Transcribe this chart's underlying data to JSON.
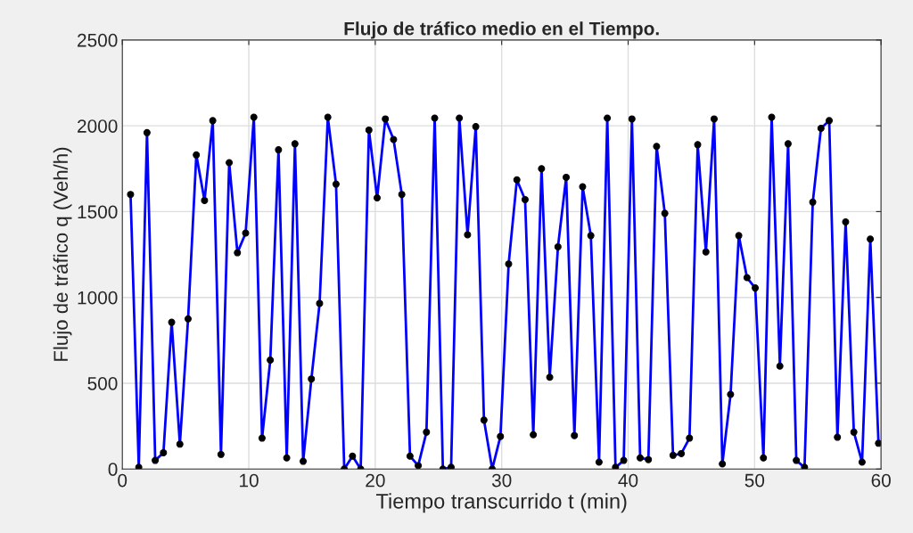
{
  "chart_data": {
    "type": "line",
    "title": "Flujo de tráfico medio en el Tiempo.",
    "xlabel": "Tiempo transcurrido t (min)",
    "ylabel": "Flujo de tráfico q (Veh/h)",
    "x": [
      0.65,
      1.3,
      1.95,
      2.6,
      3.25,
      3.9,
      4.55,
      5.2,
      5.85,
      6.5,
      7.15,
      7.8,
      8.45,
      9.1,
      9.75,
      10.4,
      11.05,
      11.7,
      12.35,
      13,
      13.65,
      14.3,
      14.95,
      15.6,
      16.25,
      16.9,
      17.55,
      18.2,
      18.85,
      19.5,
      20.15,
      20.8,
      21.45,
      22.1,
      22.75,
      23.4,
      24.05,
      24.7,
      25.35,
      26,
      26.65,
      27.3,
      27.95,
      28.6,
      29.25,
      29.9,
      30.55,
      31.2,
      31.85,
      32.5,
      33.15,
      33.8,
      34.45,
      35.1,
      35.75,
      36.4,
      37.05,
      37.7,
      38.35,
      39,
      39.65,
      40.3,
      40.95,
      41.6,
      42.25,
      42.9,
      43.55,
      44.2,
      44.85,
      45.5,
      46.15,
      46.8,
      47.45,
      48.1,
      48.75,
      49.4,
      50.05,
      50.7,
      51.35,
      52,
      52.65,
      53.3,
      53.95,
      54.6,
      55.25,
      55.9,
      56.55,
      57.2,
      57.85,
      58.5,
      59.15,
      59.8
    ],
    "series": [
      {
        "color": "#0000ff",
        "values": [
          1600,
          10,
          1960,
          50,
          95,
          855,
          145,
          875,
          1830,
          1565,
          2030,
          85,
          1785,
          1260,
          1375,
          2050,
          180,
          635,
          1860,
          65,
          1895,
          45,
          525,
          965,
          2050,
          1660,
          0,
          75,
          0,
          1975,
          1580,
          2040,
          1920,
          1600,
          75,
          20,
          215,
          2045,
          0,
          10,
          2045,
          1365,
          1995,
          285,
          0,
          190,
          1195,
          1685,
          1570,
          200,
          1750,
          535,
          1295,
          1700,
          195,
          1645,
          1360,
          40,
          2045,
          10,
          50,
          2040,
          65,
          55,
          1880,
          1490,
          80,
          90,
          180,
          1890,
          1265,
          2040,
          30,
          435,
          1360,
          1115,
          1055,
          65,
          2050,
          600,
          1895,
          50,
          10,
          1555,
          1985,
          2030,
          185,
          1440,
          215,
          40,
          1340,
          150
        ]
      }
    ],
    "xlim": [
      0,
      60
    ],
    "xticks": [
      0,
      10,
      20,
      30,
      40,
      50,
      60
    ],
    "ylim": [
      0,
      2500
    ],
    "yticks": [
      0,
      500,
      1000,
      1500,
      2000,
      2500
    ],
    "grid": true,
    "marker": "circle",
    "line_style": "solid"
  }
}
